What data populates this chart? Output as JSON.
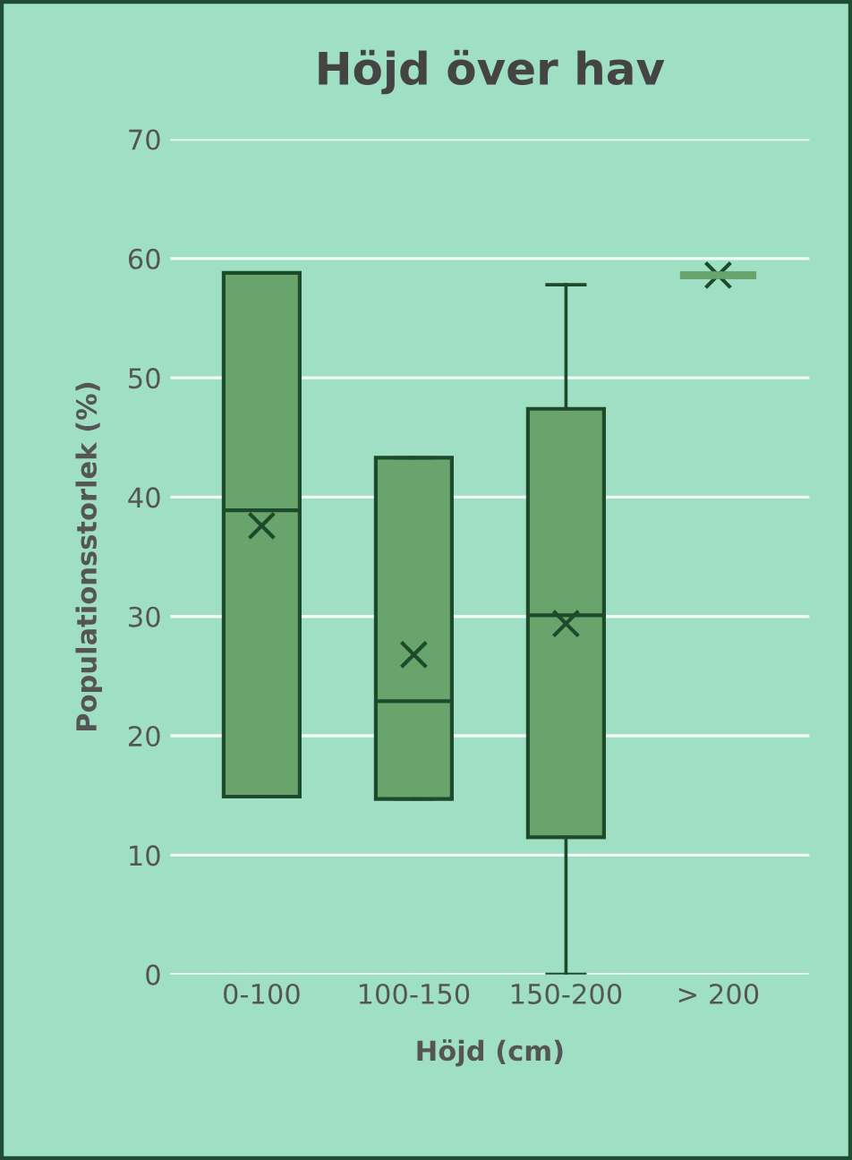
{
  "chart_data": {
    "type": "box",
    "title": "Höjd över hav",
    "xlabel": "Höjd (cm)",
    "ylabel": "Populationsstorlek (%)",
    "categories": [
      "0-100",
      "100-150",
      "150-200",
      "> 200"
    ],
    "series": [
      {
        "color": "#68a46c",
        "boxes": [
          {
            "low": 14.9,
            "q1": 14.9,
            "median": 38.9,
            "q3": 58.8,
            "high": 58.8,
            "mean": 37.6
          },
          {
            "low": 14.7,
            "q1": 14.7,
            "median": 22.9,
            "q3": 43.3,
            "high": 43.3,
            "mean": 26.8
          },
          {
            "low": 0,
            "q1": 11.5,
            "median": 30.1,
            "q3": 47.4,
            "high": 57.8,
            "mean": 29.4
          },
          {
            "low": 58.6,
            "q1": 58.6,
            "median": 58.6,
            "q3": 58.6,
            "high": 58.6,
            "mean": 58.6
          }
        ]
      }
    ],
    "ylim": [
      0,
      70
    ],
    "yticks": [
      0,
      10,
      20,
      30,
      40,
      50,
      60,
      70
    ],
    "grid": "y",
    "marker": "cross"
  }
}
